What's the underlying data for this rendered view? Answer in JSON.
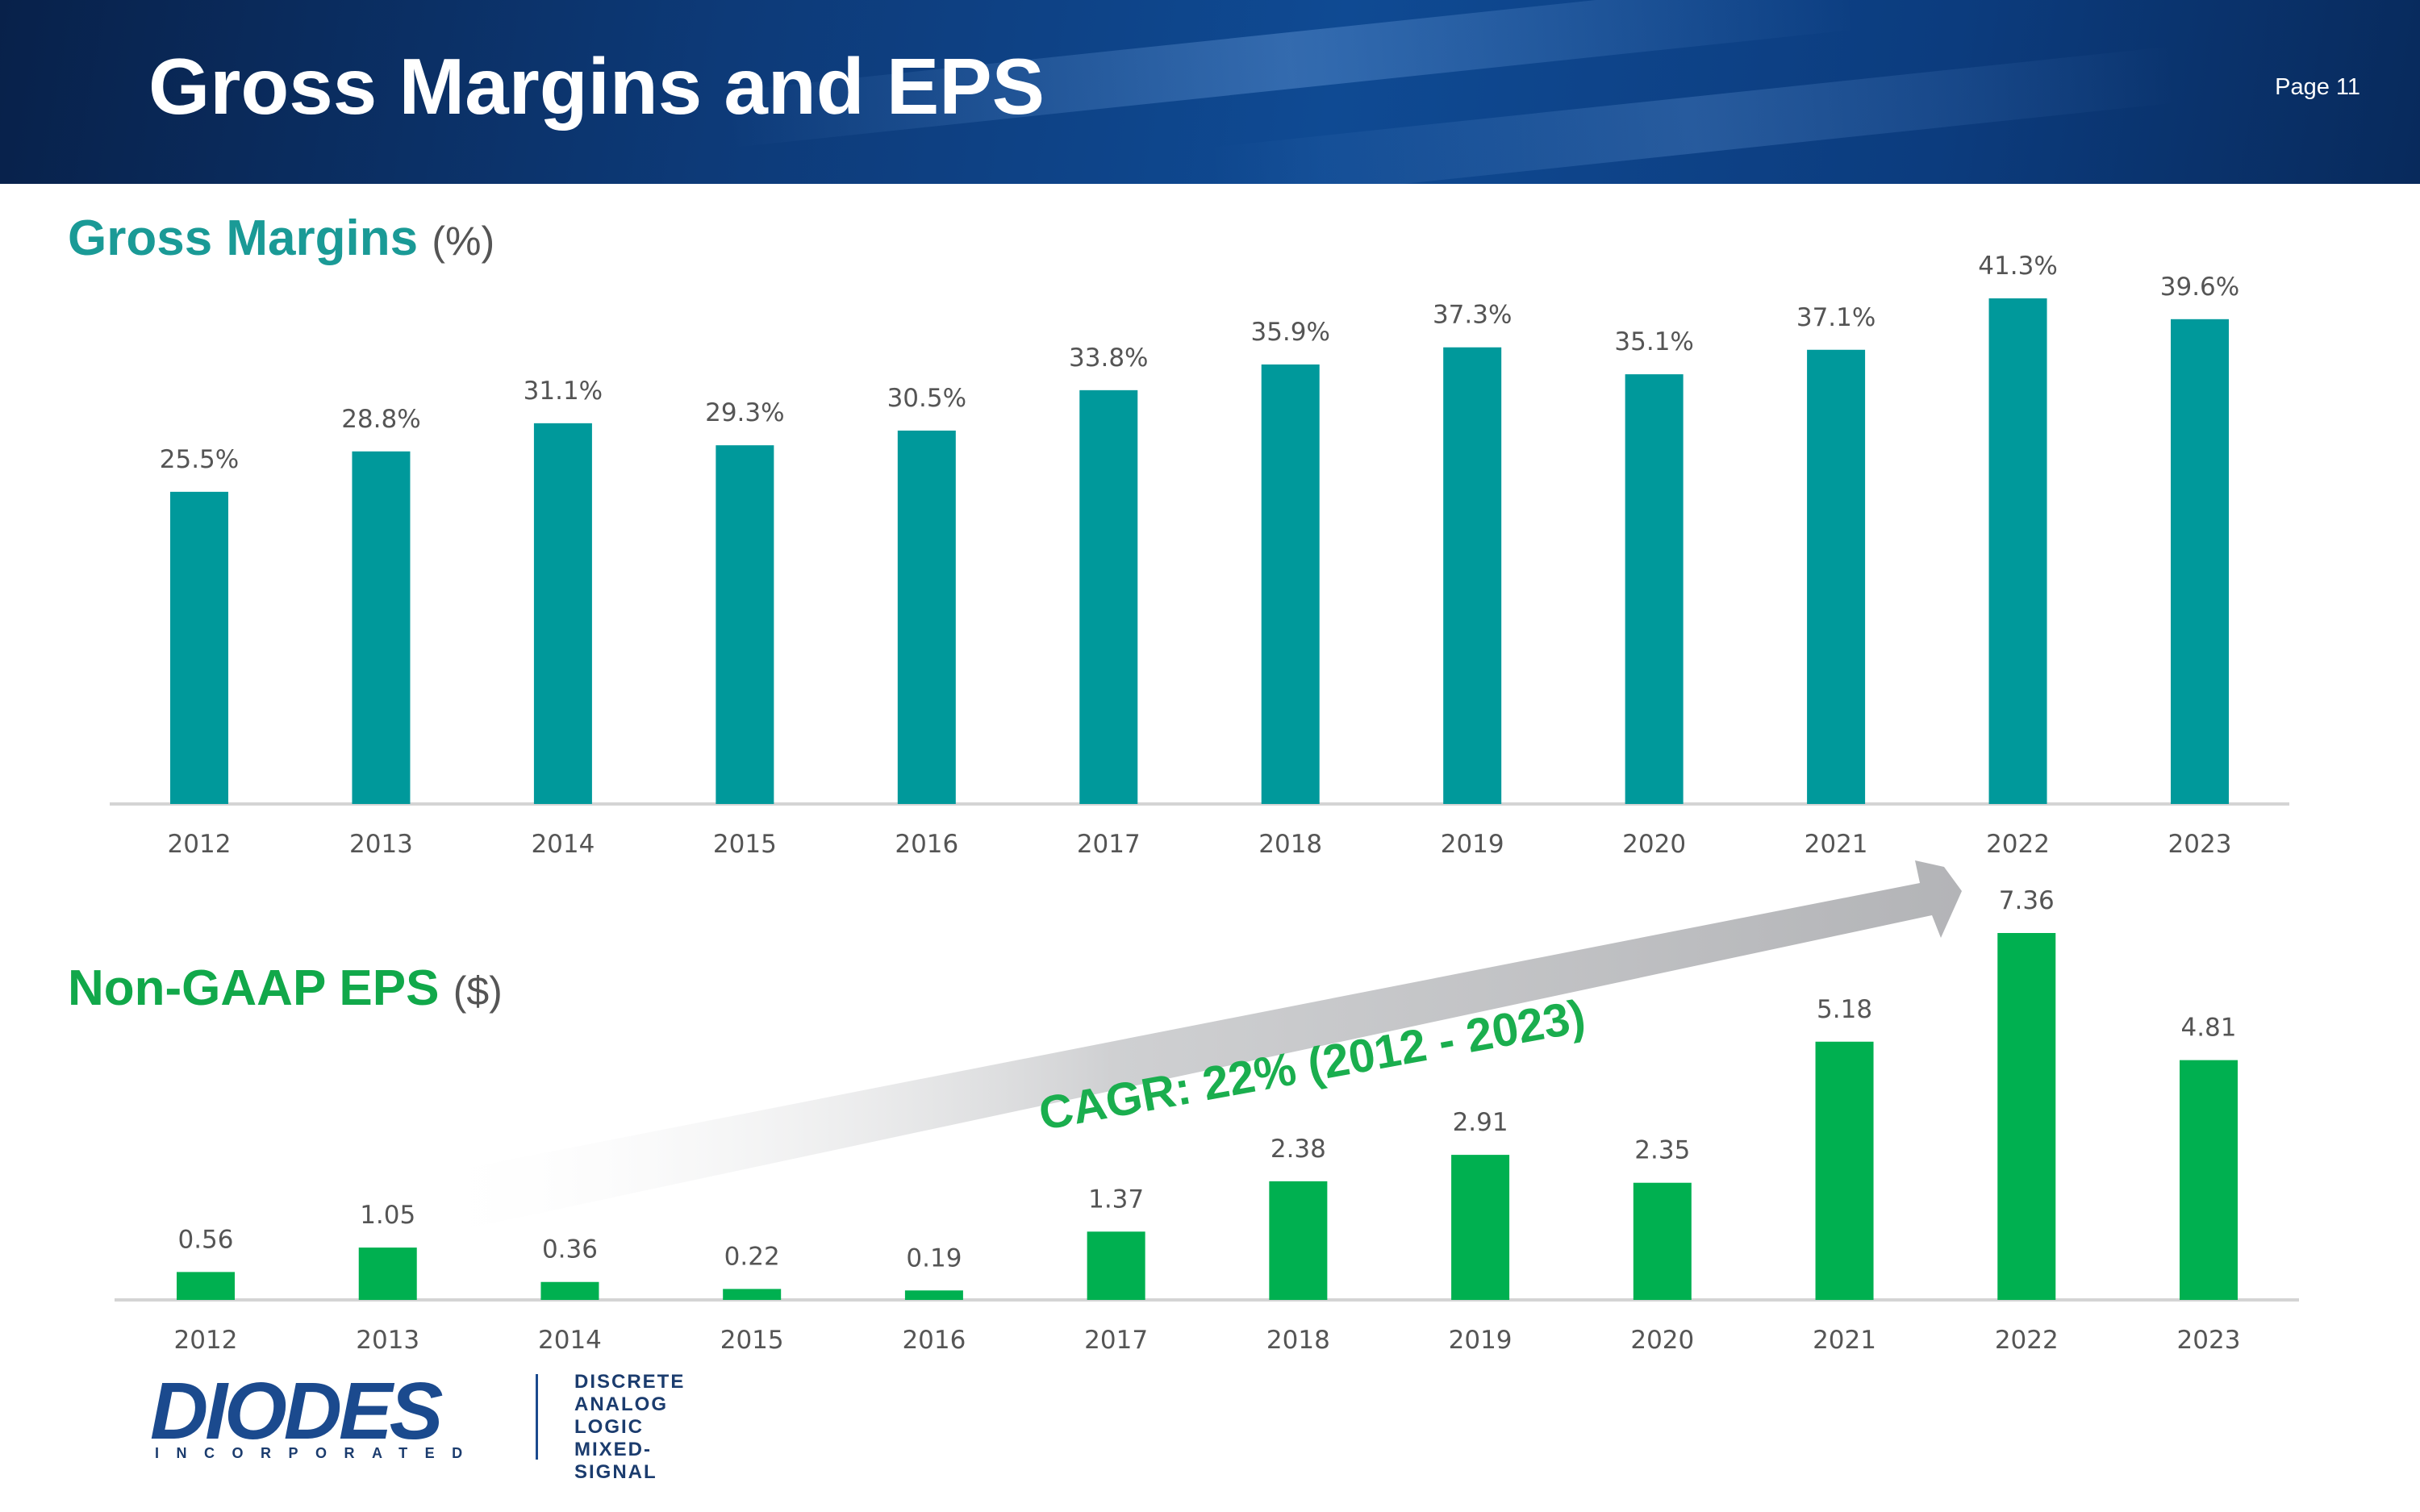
{
  "header": {
    "title": "Gross Margins and EPS",
    "page": "Page 11"
  },
  "sections": {
    "gross_margins": {
      "title": "Gross Margins",
      "unit": "(%)"
    },
    "eps": {
      "title": "Non-GAAP EPS",
      "unit": "($)"
    }
  },
  "annotation": {
    "cagr": "CAGR: 22% (2012 - 2023)"
  },
  "colors": {
    "gross_margins_bar": "#00999b",
    "eps_bar": "#00b050",
    "arrow": "#b9babd"
  },
  "logo": {
    "wordmark": "DIODES",
    "sub": "INCORPORATED",
    "lines": [
      "DISCRETE",
      "ANALOG",
      "LOGIC",
      "MIXED-SIGNAL"
    ]
  },
  "chart_data": [
    {
      "type": "bar",
      "title": "Gross Margins",
      "ylabel": "(%)",
      "categories": [
        "2012",
        "2013",
        "2014",
        "2015",
        "2016",
        "2017",
        "2018",
        "2019",
        "2020",
        "2021",
        "2022",
        "2023"
      ],
      "values": [
        25.5,
        28.8,
        31.1,
        29.3,
        30.5,
        33.8,
        35.9,
        37.3,
        35.1,
        37.1,
        41.3,
        39.6
      ],
      "labels": [
        "25.5%",
        "28.8%",
        "31.1%",
        "29.3%",
        "30.5%",
        "33.8%",
        "35.9%",
        "37.3%",
        "35.1%",
        "37.1%",
        "41.3%",
        "39.6%"
      ],
      "ylim": [
        0,
        41.3
      ],
      "grid": false
    },
    {
      "type": "bar",
      "title": "Non-GAAP EPS",
      "ylabel": "($)",
      "categories": [
        "2012",
        "2013",
        "2014",
        "2015",
        "2016",
        "2017",
        "2018",
        "2019",
        "2020",
        "2021",
        "2022",
        "2023"
      ],
      "values": [
        0.56,
        1.05,
        0.36,
        0.22,
        0.19,
        1.37,
        2.38,
        2.91,
        2.35,
        5.18,
        7.36,
        4.81
      ],
      "labels": [
        "0.56",
        "1.05",
        "0.36",
        "0.22",
        "0.19",
        "1.37",
        "2.38",
        "2.91",
        "2.35",
        "5.18",
        "7.36",
        "4.81"
      ],
      "ylim": [
        0,
        7.36
      ],
      "grid": false
    }
  ]
}
